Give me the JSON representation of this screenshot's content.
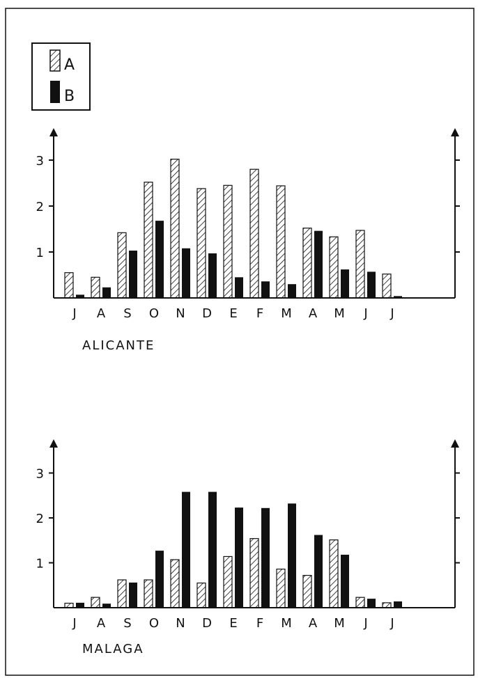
{
  "legend": {
    "entries": [
      {
        "key": "A",
        "style": "hatched",
        "color": "#111111"
      },
      {
        "key": "B",
        "style": "solid",
        "color": "#111111"
      }
    ]
  },
  "chart_data": [
    {
      "type": "bar",
      "title": "ALICANTE",
      "categories": [
        "J",
        "A",
        "S",
        "O",
        "N",
        "D",
        "E",
        "F",
        "M",
        "A",
        "M",
        "J",
        "J"
      ],
      "ylim": [
        0,
        3.2
      ],
      "yticks": [
        "1",
        "2",
        "3"
      ],
      "series": [
        {
          "name": "A",
          "style": "hatched",
          "values": [
            0.55,
            0.45,
            1.42,
            2.52,
            3.02,
            2.38,
            2.45,
            2.8,
            2.44,
            1.52,
            1.33,
            1.47,
            0.52
          ]
        },
        {
          "name": "B",
          "style": "solid",
          "values": [
            0.07,
            0.23,
            1.03,
            1.68,
            1.08,
            0.97,
            0.45,
            0.36,
            0.3,
            1.46,
            0.62,
            0.57,
            0.04
          ]
        }
      ]
    },
    {
      "type": "bar",
      "title": "MALAGA",
      "categories": [
        "J",
        "A",
        "S",
        "O",
        "N",
        "D",
        "E",
        "F",
        "M",
        "A",
        "M",
        "J",
        "J"
      ],
      "ylim": [
        0,
        3.2
      ],
      "yticks": [
        "1",
        "2",
        "3"
      ],
      "series": [
        {
          "name": "A",
          "style": "hatched",
          "values": [
            0.1,
            0.23,
            0.62,
            0.62,
            1.07,
            0.55,
            1.14,
            1.54,
            0.86,
            0.72,
            1.51,
            0.23,
            0.11
          ]
        },
        {
          "name": "B",
          "style": "solid",
          "values": [
            0.11,
            0.09,
            0.56,
            1.27,
            2.58,
            2.58,
            2.23,
            2.22,
            2.32,
            1.62,
            1.18,
            0.2,
            0.14
          ]
        }
      ]
    }
  ]
}
